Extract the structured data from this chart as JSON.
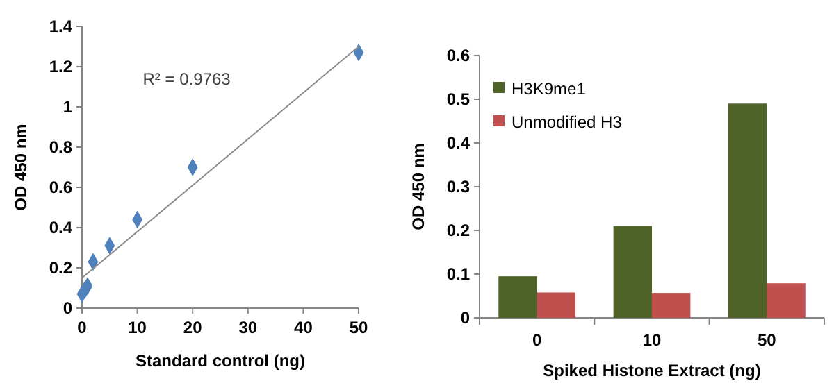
{
  "chart_data": [
    {
      "type": "scatter",
      "xlabel": "Standard control (ng)",
      "ylabel": "OD 450 nm",
      "xlim": [
        0,
        50
      ],
      "xticks": [
        0,
        10,
        20,
        30,
        40,
        50
      ],
      "ylim": [
        0,
        1.4
      ],
      "yticks": [
        0,
        0.2,
        0.4,
        0.6,
        0.8,
        1,
        1.2,
        1.4
      ],
      "grid": false,
      "annotations": [
        "R² = 0.9763"
      ],
      "series": [
        {
          "type": "scatter",
          "color": "#4f81bd",
          "marker": "diamond",
          "x": [
            0,
            0.5,
            1,
            2,
            5,
            10,
            20,
            50
          ],
          "values": [
            0.07,
            0.09,
            0.11,
            0.23,
            0.31,
            0.44,
            0.7,
            1.27
          ]
        },
        {
          "type": "line",
          "color": "#8c8c8c",
          "marker": "none",
          "x": [
            0,
            50
          ],
          "values": [
            0.15,
            1.3
          ]
        }
      ]
    },
    {
      "type": "bar",
      "xlabel": "Spiked Histone Extract (ng)",
      "ylabel": "OD 450 nm",
      "categories": [
        "0",
        "10",
        "50"
      ],
      "ylim": [
        0,
        0.6
      ],
      "yticks": [
        0,
        0.1,
        0.2,
        0.3,
        0.4,
        0.5,
        0.6
      ],
      "grid": false,
      "legend": "top left",
      "series": [
        {
          "name": "H3K9me1",
          "color": "#4f6228",
          "values": [
            0.095,
            0.21,
            0.49
          ]
        },
        {
          "name": "Unmodified H3",
          "color": "#c0504d",
          "values": [
            0.058,
            0.057,
            0.079
          ]
        }
      ]
    }
  ]
}
